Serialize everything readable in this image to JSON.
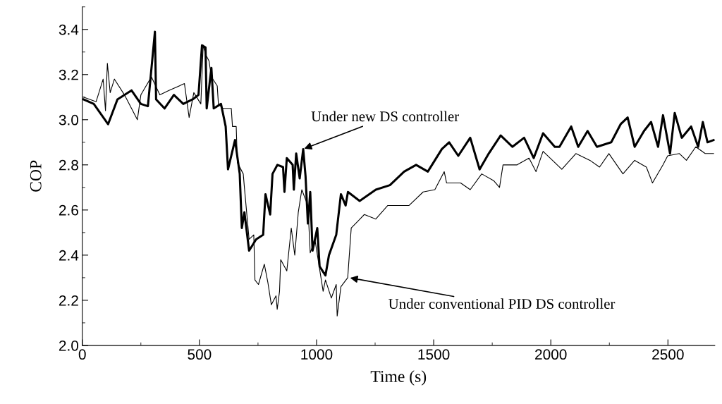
{
  "chart_data": {
    "type": "line",
    "xlabel": "Time (s)",
    "ylabel": "COP",
    "xlim": [
      0,
      2700
    ],
    "xticks": [
      0,
      500,
      1000,
      1500,
      2000,
      2500
    ],
    "ylim": [
      2.0,
      3.5
    ],
    "yticks": [
      {
        "value": 2.0,
        "label": "2.0"
      },
      {
        "value": 2.2,
        "label": "2.2"
      },
      {
        "value": 2.4,
        "label": "2.4"
      },
      {
        "value": 2.6,
        "label": "2.6"
      },
      {
        "value": 2.8,
        "label": "2.8"
      },
      {
        "value": 3.0,
        "label": "3.0"
      },
      {
        "value": 3.2,
        "label": "3.2"
      },
      {
        "value": 3.4,
        "label": "3.4"
      }
    ],
    "grid": false,
    "marker": "none",
    "line_style": "solid",
    "series": [
      {
        "color": "#000000",
        "x": [
          5,
          49,
          110,
          150,
          210,
          250,
          280,
          310,
          315,
          351,
          391,
          431,
          471,
          496,
          511,
          526,
          531,
          551,
          561,
          592,
          612,
          622,
          652,
          672,
          681,
          692,
          712,
          742,
          772,
          782,
          802,
          812,
          833,
          857,
          863,
          873,
          898,
          903,
          913,
          928,
          943,
          953,
          963,
          973,
          983,
          1003,
          1013,
          1038,
          1053,
          1084,
          1104,
          1124,
          1134,
          1184,
          1253,
          1313,
          1374,
          1425,
          1475,
          1535,
          1566,
          1605,
          1656,
          1696,
          1735,
          1786,
          1836,
          1886,
          1927,
          1967,
          2017,
          2037,
          2087,
          2117,
          2157,
          2197,
          2258,
          2298,
          2328,
          2358,
          2398,
          2428,
          2458,
          2479,
          2509,
          2529,
          2559,
          2599,
          2629,
          2649,
          2669,
          2695
        ],
        "values": [
          3.09,
          3.07,
          2.98,
          3.09,
          3.13,
          3.07,
          3.06,
          3.39,
          3.09,
          3.05,
          3.11,
          3.07,
          3.09,
          3.11,
          3.33,
          3.32,
          3.05,
          3.23,
          3.05,
          3.07,
          2.97,
          2.78,
          2.91,
          2.76,
          2.52,
          2.59,
          2.42,
          2.47,
          2.49,
          2.67,
          2.58,
          2.76,
          2.8,
          2.79,
          2.68,
          2.83,
          2.8,
          2.69,
          2.85,
          2.74,
          2.87,
          2.75,
          2.54,
          2.68,
          2.42,
          2.52,
          2.35,
          2.31,
          2.4,
          2.49,
          2.67,
          2.62,
          2.68,
          2.64,
          2.69,
          2.71,
          2.77,
          2.8,
          2.77,
          2.87,
          2.9,
          2.84,
          2.92,
          2.78,
          2.85,
          2.93,
          2.88,
          2.92,
          2.83,
          2.94,
          2.88,
          2.88,
          2.97,
          2.88,
          2.95,
          2.88,
          2.9,
          2.98,
          3.01,
          2.88,
          2.95,
          2.99,
          2.88,
          3.02,
          2.85,
          3.03,
          2.92,
          2.97,
          2.88,
          2.99,
          2.9,
          2.91
        ]
      },
      {
        "color": "#000000",
        "x": [
          5,
          59,
          89,
          99,
          107,
          119,
          137,
          180,
          235,
          250,
          295,
          331,
          370,
          436,
          456,
          476,
          506,
          516,
          526,
          541,
          551,
          576,
          581,
          601,
          636,
          641,
          657,
          662,
          687,
          692,
          712,
          732,
          737,
          752,
          777,
          792,
          807,
          827,
          832,
          842,
          847,
          873,
          892,
          907,
          922,
          937,
          963,
          973,
          993,
          1028,
          1038,
          1063,
          1084,
          1088,
          1104,
          1133,
          1148,
          1204,
          1253,
          1304,
          1354,
          1395,
          1455,
          1505,
          1545,
          1555,
          1615,
          1656,
          1705,
          1756,
          1781,
          1796,
          1856,
          1907,
          1937,
          1967,
          2047,
          2107,
          2167,
          2208,
          2248,
          2308,
          2358,
          2408,
          2434,
          2479,
          2499,
          2549,
          2579,
          2619,
          2659,
          2695
        ],
        "values": [
          3.1,
          3.08,
          3.18,
          3.04,
          3.25,
          3.12,
          3.18,
          3.11,
          3.0,
          3.11,
          3.19,
          3.11,
          3.13,
          3.16,
          3.01,
          3.12,
          3.07,
          3.33,
          3.29,
          3.26,
          3.19,
          3.15,
          3.07,
          3.05,
          3.05,
          2.97,
          2.97,
          2.81,
          2.76,
          2.7,
          2.47,
          2.49,
          2.29,
          2.27,
          2.36,
          2.28,
          2.18,
          2.22,
          2.16,
          2.24,
          2.38,
          2.33,
          2.52,
          2.4,
          2.59,
          2.69,
          2.62,
          2.41,
          2.47,
          2.24,
          2.29,
          2.21,
          2.27,
          2.13,
          2.26,
          2.3,
          2.52,
          2.58,
          2.56,
          2.62,
          2.62,
          2.62,
          2.68,
          2.69,
          2.77,
          2.72,
          2.72,
          2.69,
          2.76,
          2.73,
          2.7,
          2.8,
          2.8,
          2.83,
          2.77,
          2.86,
          2.78,
          2.85,
          2.82,
          2.79,
          2.85,
          2.76,
          2.82,
          2.79,
          2.72,
          2.8,
          2.84,
          2.85,
          2.82,
          2.88,
          2.85,
          2.85
        ]
      }
    ],
    "annotations": [
      {
        "text": "Under new DS controller",
        "x": 943,
        "y": 2.87
      },
      {
        "text": "Under conventional PID DS controller",
        "x": 1139,
        "y": 2.3
      }
    ]
  }
}
